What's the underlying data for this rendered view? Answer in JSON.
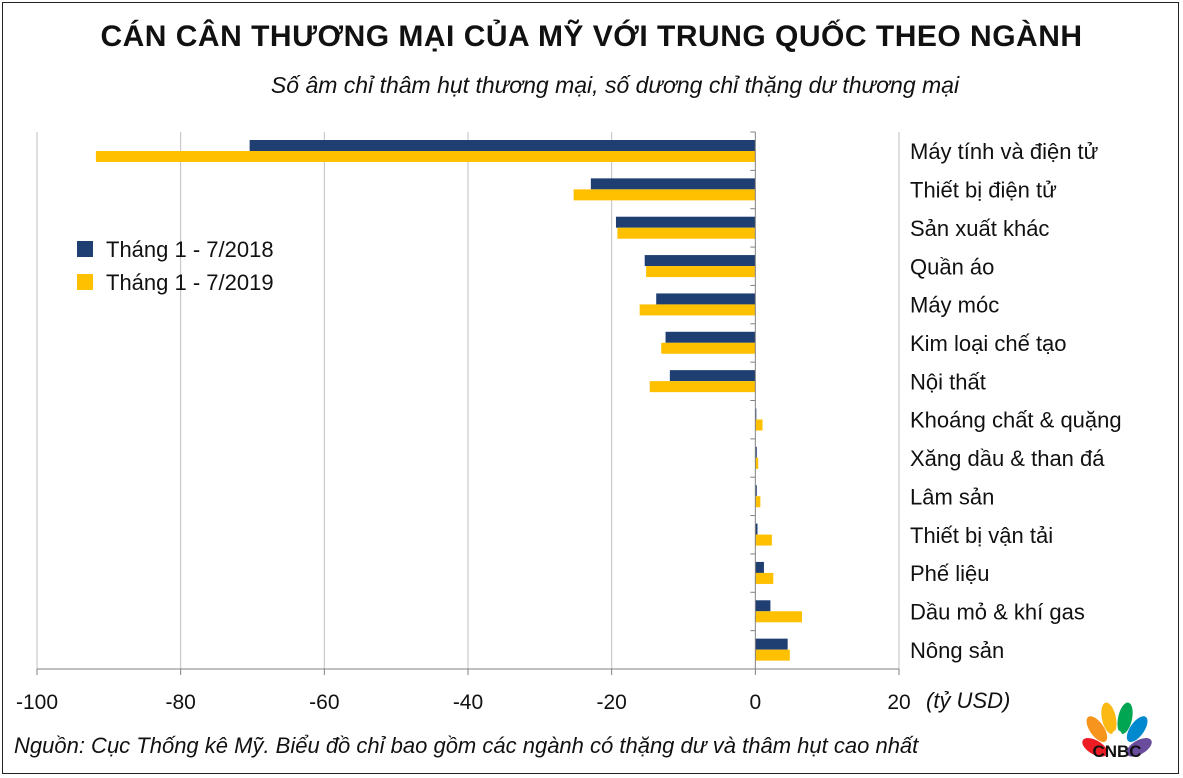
{
  "chart_data": {
    "type": "bar",
    "orientation": "horizontal",
    "title": "CÁN CÂN THƯƠNG MẠI CỦA MỸ VỚI TRUNG QUỐC THEO NGÀNH",
    "subtitle": "Số âm chỉ thâm hụt thương mại, số dương chỉ thặng dư thương mại",
    "unit": "(tỷ USD)",
    "source": "Nguồn: Cục Thống kê Mỹ. Biểu đồ chỉ bao gồm các ngành có thặng dư và thâm hụt cao nhất",
    "categories": [
      "Máy tính và điện tử",
      "Thiết bị điện tử",
      "Sản xuất khác",
      "Quần áo",
      "Máy móc",
      "Kim loại chế tạo",
      "Nội thất",
      "Khoáng chất & quặng",
      "Xăng dầu & than đá",
      "Lâm sản",
      "Thiết bị vận tải",
      "Phế liệu",
      "Dầu mỏ & khí gas",
      "Nông sản"
    ],
    "series": [
      {
        "name": "Tháng 1 - 7/2018",
        "color": "#1f3f73",
        "values": [
          -70.4,
          -22.9,
          -19.4,
          -15.4,
          -13.8,
          -12.5,
          -11.9,
          0.1,
          0.2,
          0.2,
          0.3,
          1.2,
          2.1,
          4.5
        ]
      },
      {
        "name": "Tháng 1 - 7/2019",
        "color": "#ffc000",
        "values": [
          -91.8,
          -25.3,
          -19.2,
          -15.2,
          -16.1,
          -13.1,
          -14.7,
          1.0,
          0.4,
          0.7,
          2.3,
          2.5,
          6.5,
          4.8
        ]
      }
    ],
    "xlim": [
      -100,
      20
    ],
    "xticks": [
      -100,
      -80,
      -60,
      -40,
      -20,
      0,
      20
    ],
    "xtick_labels": [
      "-100",
      "-80",
      "-60",
      "-40",
      "-20",
      "0",
      "20"
    ],
    "grid": "vertical",
    "legend_position": "left"
  },
  "logo": {
    "text": "CNBC"
  }
}
